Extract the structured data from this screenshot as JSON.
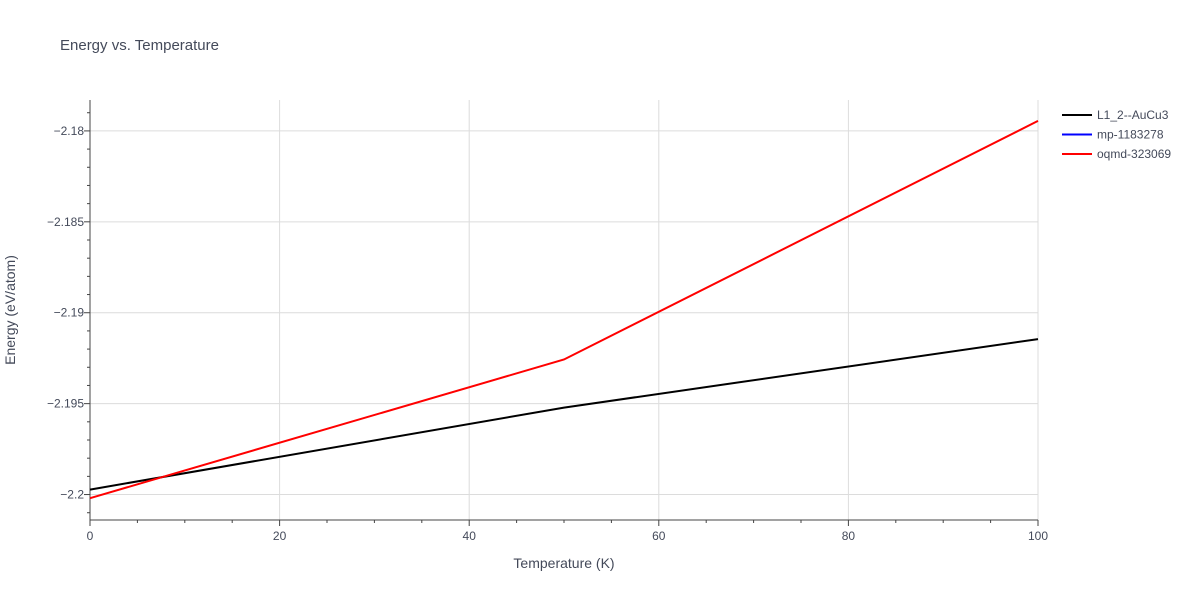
{
  "chart_data": {
    "type": "line",
    "title": "Energy vs. Temperature",
    "xlabel": "Temperature (K)",
    "ylabel": "Energy (eV/atom)",
    "xlim": [
      0,
      100
    ],
    "ylim": [
      -2.2014,
      -2.1783
    ],
    "x_ticks": [
      0,
      20,
      40,
      60,
      80,
      100
    ],
    "y_ticks": [
      -2.2,
      -2.195,
      -2.19,
      -2.185,
      -2.18
    ],
    "x_tick_labels": [
      "0",
      "20",
      "40",
      "60",
      "80",
      "100"
    ],
    "y_tick_labels": [
      "−2.2",
      "−2.195",
      "−2.19",
      "−2.185",
      "−2.18"
    ],
    "grid": true,
    "legend_position": "top-right",
    "series": [
      {
        "name": "L1_2--AuCu3",
        "color": "#000000",
        "x": [
          0,
          50,
          100
        ],
        "y": [
          -2.19973,
          -2.19522,
          -2.19145
        ]
      },
      {
        "name": "mp-1183278",
        "color": "#0000ff",
        "x": [],
        "y": []
      },
      {
        "name": "oqmd-323069",
        "color": "#ff0000",
        "x": [
          0,
          50,
          100
        ],
        "y": [
          -2.2002,
          -2.19257,
          -2.17945
        ]
      }
    ]
  }
}
